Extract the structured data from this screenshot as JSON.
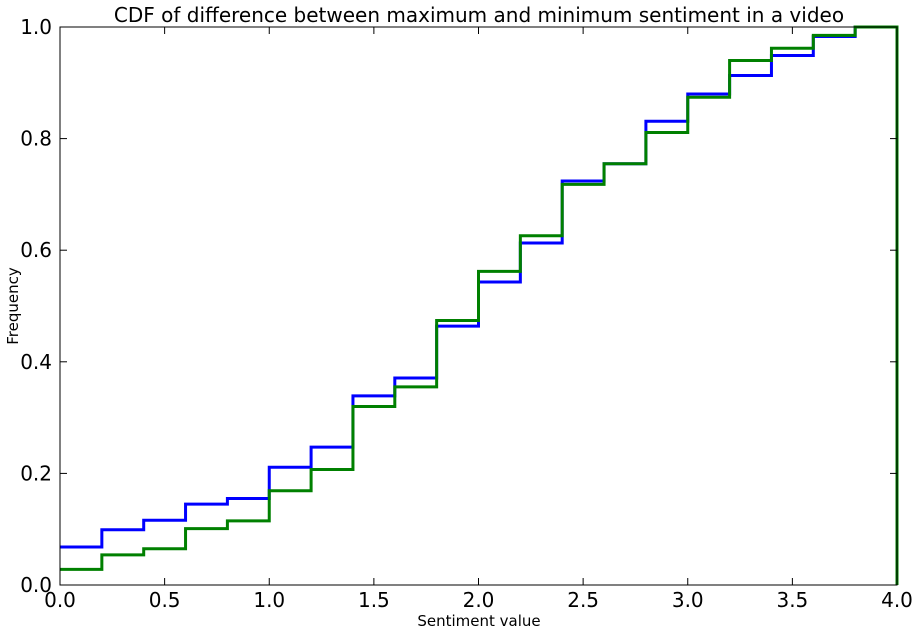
{
  "chart_data": {
    "type": "line",
    "title": "CDF of difference between maximum and minimum sentiment in a video",
    "xlabel": "Sentiment value",
    "ylabel": "Frequency",
    "xlim": [
      0.0,
      4.0
    ],
    "ylim": [
      0.0,
      1.0
    ],
    "x_ticks": [
      0.0,
      0.5,
      1.0,
      1.5,
      2.0,
      2.5,
      3.0,
      3.5,
      4.0
    ],
    "x_tick_labels": [
      "0.0",
      "0.5",
      "1.0",
      "1.5",
      "2.0",
      "2.5",
      "3.0",
      "3.5",
      "4.0"
    ],
    "y_ticks": [
      0.0,
      0.2,
      0.4,
      0.6,
      0.8,
      1.0
    ],
    "y_tick_labels": [
      "0.0",
      "0.2",
      "0.4",
      "0.6",
      "0.8",
      "1.0"
    ],
    "grid": false,
    "step": "post",
    "bin_edges": [
      0.0,
      0.2,
      0.4,
      0.6,
      0.8,
      1.0,
      1.2,
      1.4,
      1.6,
      1.8,
      2.0,
      2.2,
      2.4,
      2.6,
      2.8,
      3.0,
      3.2,
      3.4,
      3.6,
      3.8,
      4.0
    ],
    "series": [
      {
        "color": "#0000ff",
        "values": [
          0.068,
          0.099,
          0.116,
          0.145,
          0.155,
          0.211,
          0.247,
          0.339,
          0.371,
          0.464,
          0.543,
          0.613,
          0.724,
          0.755,
          0.831,
          0.88,
          0.913,
          0.949,
          0.983,
          1.0
        ]
      },
      {
        "color": "#008000",
        "values": [
          0.028,
          0.054,
          0.065,
          0.101,
          0.115,
          0.169,
          0.207,
          0.32,
          0.355,
          0.474,
          0.562,
          0.626,
          0.718,
          0.755,
          0.811,
          0.874,
          0.94,
          0.962,
          0.985,
          1.0
        ]
      }
    ]
  }
}
